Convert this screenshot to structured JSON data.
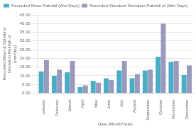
{
  "chart_data": {
    "type": "bar",
    "categories": [
      "January",
      "February",
      "March",
      "April",
      "May",
      "June",
      "July",
      "August",
      "September",
      "October",
      "November",
      "December"
    ],
    "series": [
      {
        "name": "Recorded Mean Rainfall (Wet Days)",
        "color": "#4BACC6",
        "values": [
          12.5,
          10.0,
          12.0,
          3.5,
          7.0,
          8.5,
          13.0,
          8.5,
          13.0,
          21.0,
          18.0,
          10.5
        ]
      },
      {
        "name": "Recorded Standard Deviation Rainfall of (Wet Days)",
        "color": "#9999BB",
        "values": [
          19.0,
          13.5,
          18.5,
          4.5,
          6.0,
          7.5,
          18.5,
          11.0,
          13.5,
          40.0,
          18.5,
          16.0
        ]
      }
    ],
    "xlabel": "Date (Month/Year)",
    "ylabel": "Recorded Mean & Standard Deviation Rainfall of (mm/day)",
    "ylim": [
      0,
      45
    ],
    "yticks": [
      {
        "value": 0,
        "label": "0.00"
      },
      {
        "value": 5,
        "label": "5.00"
      },
      {
        "value": 10,
        "label": "10.00"
      },
      {
        "value": 15,
        "label": "15.00"
      },
      {
        "value": 20,
        "label": "20.00"
      },
      {
        "value": 25,
        "label": "25.00"
      },
      {
        "value": 30,
        "label": "30.00"
      },
      {
        "value": 35,
        "label": "35.00"
      },
      {
        "value": 40,
        "label": "40.00"
      },
      {
        "value": 45,
        "label": "45.00"
      }
    ],
    "grid": true,
    "legend": "upper left"
  }
}
